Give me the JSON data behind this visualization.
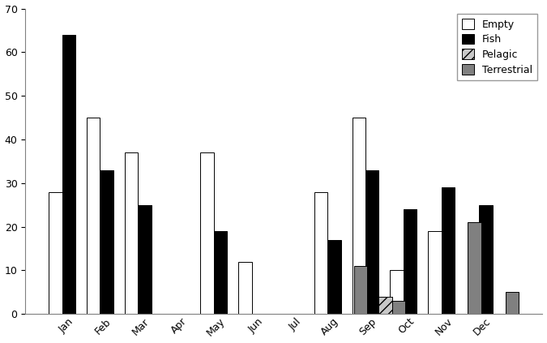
{
  "months": [
    "Jan",
    "Feb",
    "Mar",
    "Apr",
    "May",
    "Jun",
    "Jul",
    "Aug",
    "Sep",
    "Oct",
    "Nov",
    "Dec"
  ],
  "empty": [
    28,
    45,
    37,
    0,
    37,
    12,
    0,
    28,
    45,
    10,
    19,
    0
  ],
  "fish": [
    64,
    33,
    25,
    0,
    19,
    0,
    0,
    17,
    33,
    24,
    29,
    25
  ],
  "pelagic": [
    0,
    0,
    0,
    0,
    0,
    0,
    0,
    0,
    4,
    0,
    0,
    0
  ],
  "terrestrial": [
    0,
    0,
    0,
    0,
    0,
    0,
    0,
    11,
    3,
    0,
    21,
    5
  ],
  "ylim": [
    0,
    70
  ],
  "yticks": [
    0,
    10,
    20,
    30,
    40,
    50,
    60,
    70
  ],
  "bar_colors": {
    "empty": "#ffffff",
    "fish": "#000000",
    "pelagic": "#c8c8c8",
    "terrestrial": "#808080"
  },
  "legend_labels": [
    "Empty",
    "Fish",
    "Pelagic",
    "Terrestrial"
  ],
  "bar_width": 0.35,
  "edge_color": "#000000",
  "background_color": "#ffffff"
}
